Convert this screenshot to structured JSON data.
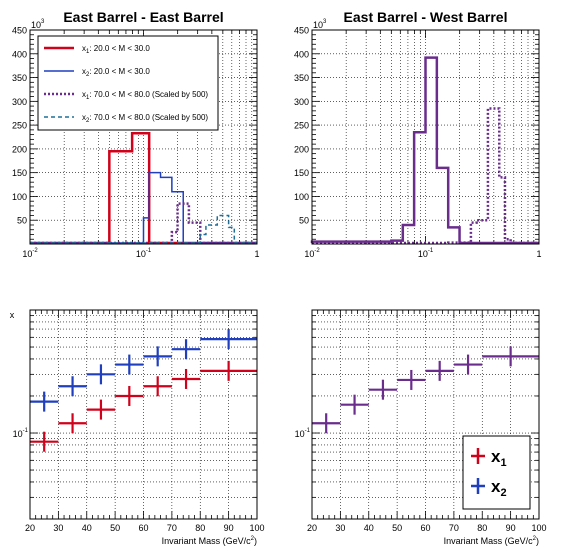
{
  "colors": {
    "red": "#d0021b",
    "blue": "#1f3fbf",
    "purple": "#6a2d8c",
    "teal": "#1f6f99",
    "grid": "#000000"
  },
  "chart_data": [
    {
      "type": "histogram",
      "title": "East Barrel - East Barrel",
      "xscale": "log",
      "xlim": [
        0.01,
        1
      ],
      "ylim": [
        0,
        450000
      ],
      "y_exponent_label": "10",
      "y_exponent_power": "3",
      "xticks": [
        {
          "v": 0.01,
          "base": "10",
          "exp": "-2"
        },
        {
          "v": 0.1,
          "base": "10",
          "exp": "-1"
        },
        {
          "v": 1,
          "base": "1",
          "exp": ""
        }
      ],
      "yticks": [
        "50",
        "100",
        "150",
        "200",
        "250",
        "300",
        "350",
        "400",
        "450"
      ],
      "legend_position": "top-left",
      "series": [
        {
          "name": "x₁: 20.0 < M < 30.0",
          "label_var": "x",
          "label_sub": "1",
          "label_rest": ": 20.0 < M < 30.0",
          "color": "#d0021b",
          "style": "solid",
          "width": 2.5,
          "edges": [
            0.01,
            0.05,
            0.0794,
            0.1122,
            1
          ],
          "values": [
            0,
            195000,
            233000,
            0
          ]
        },
        {
          "name": "x₂: 20.0 < M < 30.0",
          "label_var": "x",
          "label_sub": "2",
          "label_rest": ": 20.0 < M < 30.0",
          "color": "#1f3fbf",
          "style": "solid",
          "width": 1.5,
          "edges": [
            0.01,
            0.1,
            0.1122,
            0.1413,
            0.1778,
            0.2239,
            1
          ],
          "values": [
            0,
            55000,
            150000,
            140000,
            110000,
            0
          ]
        },
        {
          "name": "x₁: 70.0 < M < 80.0 (Scaled by 500)",
          "label_var": "x",
          "label_sub": "1",
          "label_rest": ": 70.0 < M < 80.0 (Scaled by 500)",
          "color": "#6a2d8c",
          "style": "dotted",
          "width": 2.5,
          "edges": [
            0.01,
            0.1778,
            0.1995,
            0.2512,
            0.3162,
            1
          ],
          "values": [
            0,
            25000,
            85000,
            45000,
            0
          ]
        },
        {
          "name": "x₂: 70.0 < M < 80.0 (Scaled by 500)",
          "label_var": "x",
          "label_sub": "2",
          "label_rest": ": 70.0 < M < 80.0 (Scaled by 500)",
          "color": "#1f6f99",
          "style": "dashed",
          "width": 1.5,
          "edges": [
            0.01,
            0.3162,
            0.3548,
            0.4467,
            0.5623,
            0.631,
            1
          ],
          "values": [
            0,
            20000,
            40000,
            60000,
            35000,
            0
          ]
        }
      ]
    },
    {
      "type": "histogram",
      "title": "East Barrel - West Barrel",
      "xscale": "log",
      "xlim": [
        0.01,
        1
      ],
      "ylim": [
        0,
        450000
      ],
      "y_exponent_label": "10",
      "y_exponent_power": "3",
      "xticks": [
        {
          "v": 0.01,
          "base": "10",
          "exp": "-2"
        },
        {
          "v": 0.1,
          "base": "10",
          "exp": "-1"
        },
        {
          "v": 1,
          "base": "1",
          "exp": ""
        }
      ],
      "yticks": [
        "50",
        "100",
        "150",
        "200",
        "250",
        "300",
        "350",
        "400",
        "450"
      ],
      "series": [
        {
          "color": "#6a2d8c",
          "style": "solid",
          "width": 2.5,
          "edges": [
            0.01,
            0.05,
            0.0631,
            0.0794,
            0.1,
            0.1259,
            0.1585,
            0.1995,
            1
          ],
          "values": [
            5000,
            7000,
            40000,
            235000,
            392000,
            160000,
            35000,
            0
          ]
        },
        {
          "color": "#6a2d8c",
          "style": "dotted",
          "width": 2.5,
          "edges": [
            0.01,
            0.1585,
            0.2512,
            0.2818,
            0.3548,
            0.4467,
            0.5012,
            0.5623,
            1
          ],
          "values": [
            0,
            3000,
            45000,
            50000,
            285000,
            140000,
            10000,
            0
          ]
        }
      ]
    },
    {
      "type": "scatter",
      "xscale": "linear",
      "yscale": "log",
      "xlim": [
        20,
        100
      ],
      "ylim": [
        0.02,
        1
      ],
      "ylabel": "x",
      "xlabel_main": "Invariant Mass (GeV/c",
      "xlabel_sup": "2",
      "xlabel_end": ")",
      "xticks": [
        "20",
        "30",
        "40",
        "50",
        "60",
        "70",
        "80",
        "90",
        "100"
      ],
      "yticks": [
        {
          "v": 0.1,
          "base": "10",
          "exp": "-1"
        }
      ],
      "series": [
        {
          "name": "x1",
          "color": "#1f3fbf",
          "points": [
            {
              "x": 25,
              "y": 0.18,
              "xe": 5
            },
            {
              "x": 35,
              "y": 0.24,
              "xe": 5
            },
            {
              "x": 45,
              "y": 0.3,
              "xe": 5
            },
            {
              "x": 55,
              "y": 0.36,
              "xe": 5
            },
            {
              "x": 65,
              "y": 0.42,
              "xe": 5
            },
            {
              "x": 75,
              "y": 0.48,
              "xe": 5
            },
            {
              "x": 90,
              "y": 0.58,
              "xe": 10
            }
          ]
        },
        {
          "name": "x2",
          "color": "#d0021b",
          "points": [
            {
              "x": 25,
              "y": 0.085,
              "xe": 5
            },
            {
              "x": 35,
              "y": 0.12,
              "xe": 5
            },
            {
              "x": 45,
              "y": 0.155,
              "xe": 5
            },
            {
              "x": 55,
              "y": 0.2,
              "xe": 5
            },
            {
              "x": 65,
              "y": 0.24,
              "xe": 5
            },
            {
              "x": 75,
              "y": 0.275,
              "xe": 5
            },
            {
              "x": 90,
              "y": 0.32,
              "xe": 10
            }
          ]
        }
      ]
    },
    {
      "type": "scatter",
      "xscale": "linear",
      "yscale": "log",
      "xlim": [
        20,
        100
      ],
      "ylim": [
        0.02,
        1
      ],
      "xlabel_main": "Invariant Mass (GeV/c",
      "xlabel_sup": "2",
      "xlabel_end": ")",
      "xticks": [
        "20",
        "30",
        "40",
        "50",
        "60",
        "70",
        "80",
        "90",
        "100"
      ],
      "yticks": [
        {
          "v": 0.1,
          "base": "10",
          "exp": "-1"
        }
      ],
      "legend_position": "bottom-right",
      "legend": [
        {
          "label_var": "x",
          "label_sub": "1",
          "color": "#d0021b"
        },
        {
          "label_var": "x",
          "label_sub": "2",
          "color": "#1f3fbf"
        }
      ],
      "series": [
        {
          "name": "combined",
          "color": "#6a2d8c",
          "points": [
            {
              "x": 25,
              "y": 0.12,
              "xe": 5
            },
            {
              "x": 35,
              "y": 0.17,
              "xe": 5
            },
            {
              "x": 45,
              "y": 0.225,
              "xe": 5
            },
            {
              "x": 55,
              "y": 0.27,
              "xe": 5
            },
            {
              "x": 65,
              "y": 0.32,
              "xe": 5
            },
            {
              "x": 75,
              "y": 0.36,
              "xe": 5
            },
            {
              "x": 90,
              "y": 0.42,
              "xe": 10
            }
          ]
        }
      ]
    }
  ]
}
